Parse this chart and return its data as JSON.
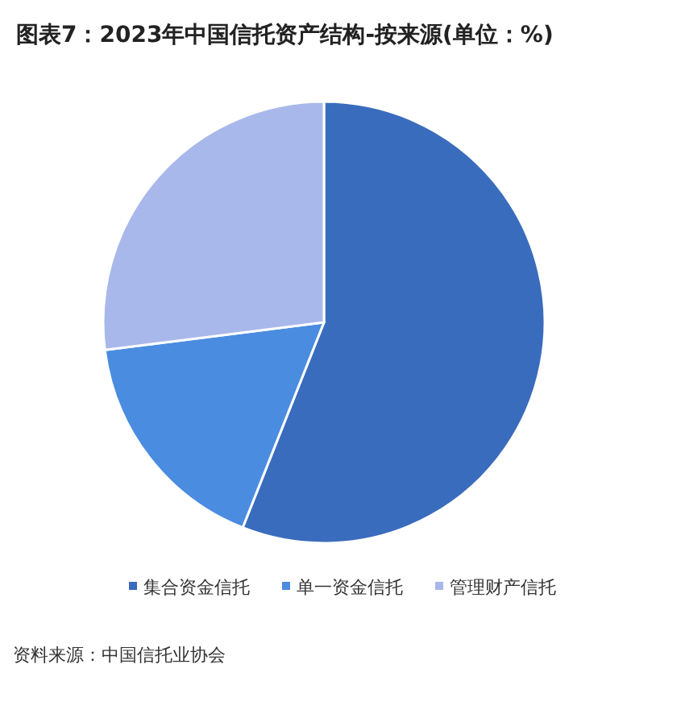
{
  "chart_data": {
    "type": "pie",
    "title": "图表7：2023年中国信托资产结构-按来源(单位：%)",
    "categories": [
      "集合资金信托",
      "单一资金信托",
      "管理财产信托"
    ],
    "values": [
      56,
      17,
      27
    ],
    "colors": [
      "#3a6cbd",
      "#4a8ce0",
      "#a9b8ea"
    ],
    "legend": "bottom",
    "annotations": [
      "资料来源：中国信托业协会"
    ]
  }
}
